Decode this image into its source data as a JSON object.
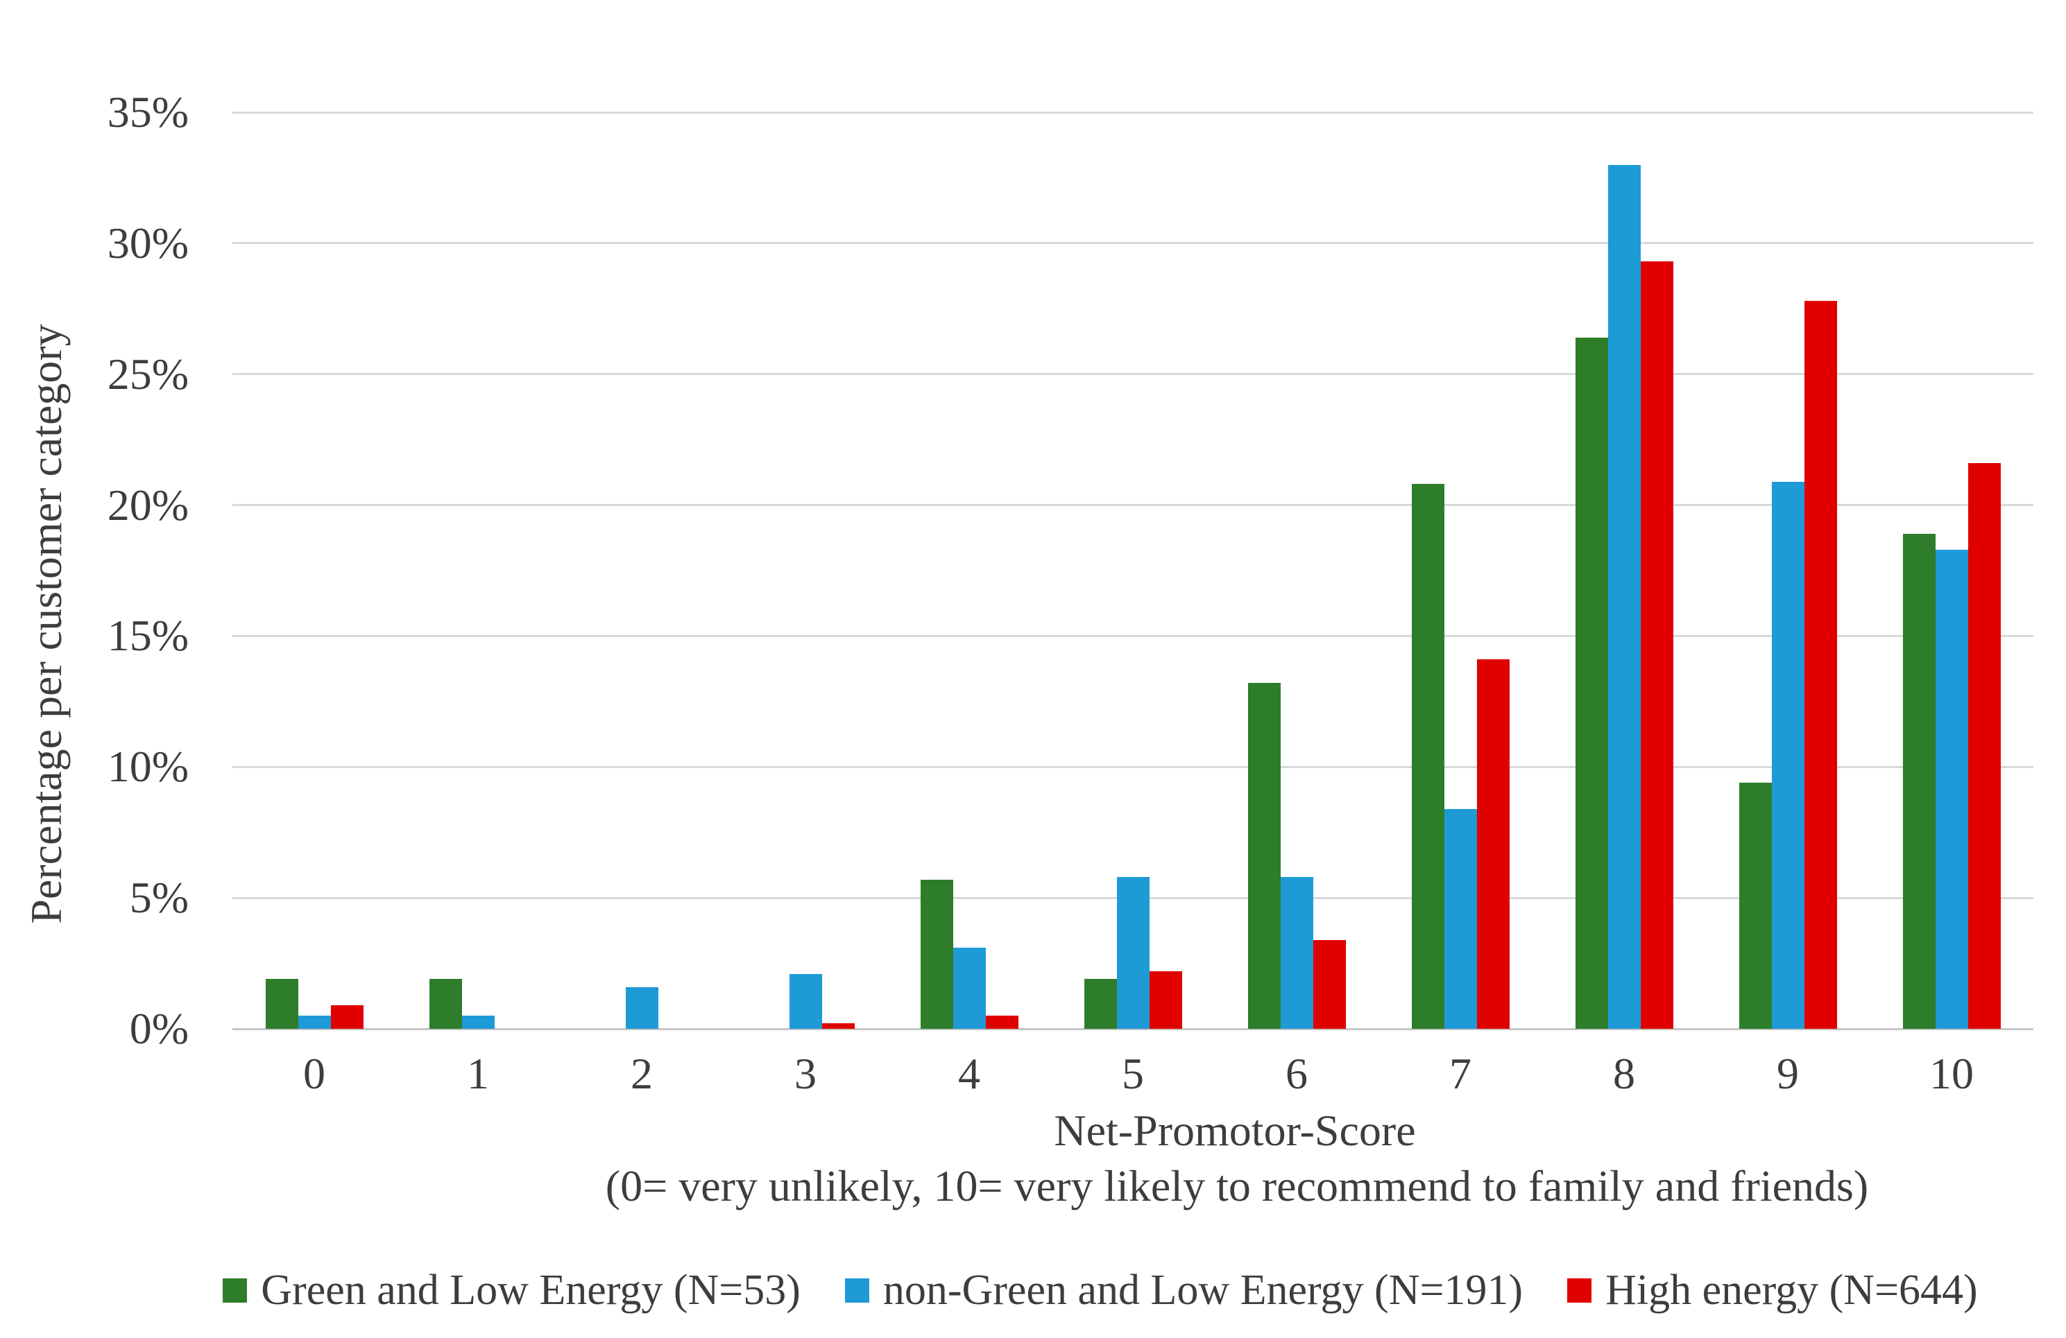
{
  "figure": {
    "background": "#ffffff",
    "text_color": "#3d3d3d",
    "gridline_color": "#d9d9d9",
    "baseline_color": "#c6c6c6"
  },
  "axes": {
    "y_title": "Percentage per customer category",
    "y_ticks": [
      "0%",
      "5%",
      "10%",
      "15%",
      "20%",
      "25%",
      "30%",
      "35%"
    ],
    "x_ticks": [
      "0",
      "1",
      "2",
      "3",
      "4",
      "5",
      "6",
      "7",
      "8",
      "9",
      "10"
    ],
    "x_title": "Net-Promotor-Score",
    "x_subtitle": "(0= very unlikely, 10= very likely to recommend to family and friends)"
  },
  "legend": {
    "items": [
      {
        "label": "Green and Low Energy (N=53)",
        "color": "#2e7d2b"
      },
      {
        "label": "non-Green and Low Energy (N=191)",
        "color": "#1e9ad6"
      },
      {
        "label": "High energy (N=644)",
        "color": "#e00000"
      }
    ]
  },
  "chart_data": {
    "type": "bar",
    "categories": [
      "0",
      "1",
      "2",
      "3",
      "4",
      "5",
      "6",
      "7",
      "8",
      "9",
      "10"
    ],
    "series": [
      {
        "key": "green-and-low-energy",
        "name": "Green and Low Energy (N=53)",
        "color": "#2e7d2b",
        "values": [
          1.9,
          1.9,
          0,
          0,
          5.7,
          1.9,
          13.2,
          20.8,
          26.4,
          9.4,
          18.9
        ]
      },
      {
        "key": "non-green-and-low-energy",
        "name": "non-Green and Low Energy (N=191)",
        "color": "#1e9ad6",
        "values": [
          0.5,
          0.5,
          1.6,
          2.1,
          3.1,
          5.8,
          5.8,
          8.4,
          33.0,
          20.9,
          18.3
        ]
      },
      {
        "key": "high-energy",
        "name": "High energy (N=644)",
        "color": "#e00000",
        "values": [
          0.9,
          0,
          0,
          0.2,
          0.5,
          2.2,
          3.4,
          14.1,
          29.3,
          27.8,
          21.6
        ]
      }
    ],
    "title": "",
    "xlabel": "Net-Promotor-Score",
    "xlabel_note": "(0= very unlikely, 10= very likely to recommend to family and friends)",
    "ylabel": "Percentage per customer category",
    "ylim": [
      0,
      35
    ],
    "y_tick_step": 5,
    "grid": true,
    "legend_position": "bottom"
  }
}
